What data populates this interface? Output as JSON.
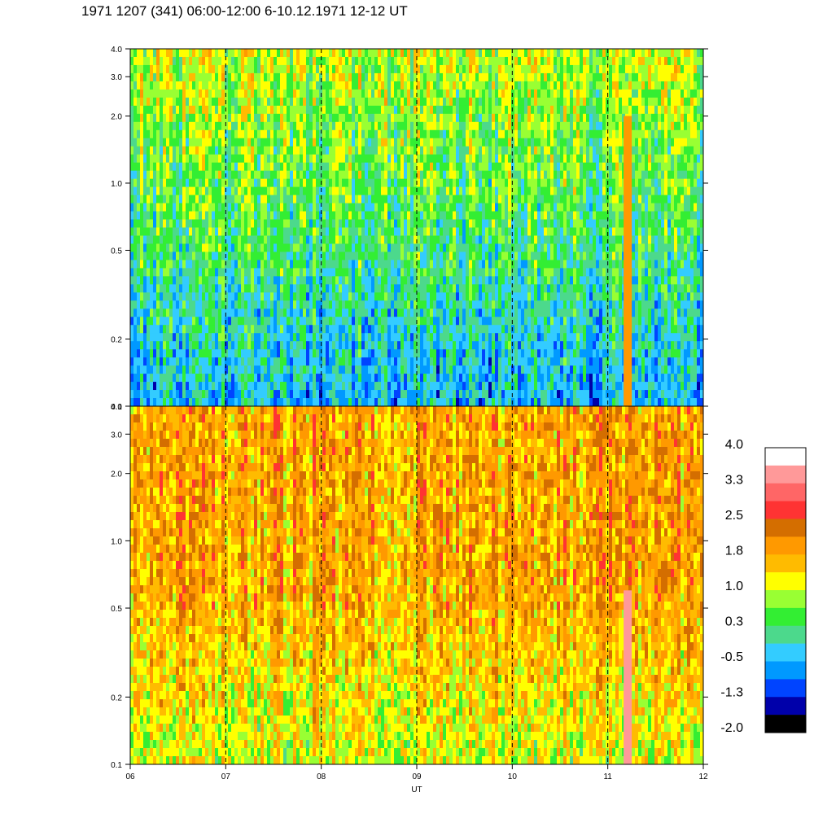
{
  "title": "1971 1207 (341) 06:00-12:00 6-10.12.1971  12-12 UT",
  "chart_data": {
    "type": "heatmap",
    "xlabel": "UT",
    "x_ticks": [
      "06",
      "07",
      "08",
      "09",
      "10",
      "11",
      "12"
    ],
    "xlim": [
      6,
      12
    ],
    "panels": [
      {
        "name": "upper",
        "y_scale": "log",
        "ylim": [
          0.1,
          4.0
        ],
        "y_ticks": [
          "0.1",
          "0.2",
          "0.5",
          "1.0",
          "2.0",
          "3.0",
          "4.0"
        ],
        "dominant_levels": {
          "low_freq": "-0.5",
          "mid_freq": "0.3",
          "high_freq": "1.0"
        },
        "features": [
          {
            "x": 11.2,
            "y_range": [
              0.1,
              2.0
            ],
            "level": "1.8"
          }
        ]
      },
      {
        "name": "lower",
        "y_scale": "log",
        "ylim": [
          0.1,
          4.0
        ],
        "y_ticks": [
          "0.1",
          "0.2",
          "0.5",
          "1.0",
          "2.0",
          "3.0",
          "4.0"
        ],
        "dominant_levels": {
          "low_freq": "1.0",
          "mid_freq": "1.8",
          "high_freq": "1.8"
        },
        "features": [
          {
            "x": 11.2,
            "y_range": [
              0.1,
              0.6
            ],
            "level": "3.3"
          }
        ]
      }
    ],
    "grid": "dashed vertical lines at each hour",
    "colorbar": {
      "labels": [
        "4.0",
        "3.3",
        "2.5",
        "1.8",
        "1.0",
        "0.3",
        "-0.5",
        "-1.3",
        "-2.0"
      ],
      "colors": [
        "#ffffff",
        "#ff9999",
        "#ff6666",
        "#ff3333",
        "#d46e00",
        "#ff9900",
        "#ffbb00",
        "#ffff00",
        "#99ff33",
        "#33ee33",
        "#4cd98c",
        "#33ccff",
        "#0099ff",
        "#0044ff",
        "#0000aa",
        "#000000"
      ]
    }
  }
}
